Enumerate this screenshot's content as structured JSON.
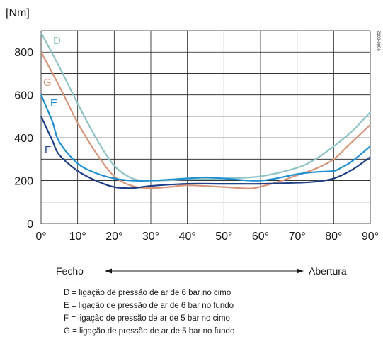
{
  "chart_data": {
    "type": "line",
    "ylabel": "[Nm]",
    "code": "2100-0006",
    "x_ticks": [
      "0°",
      "10°",
      "20°",
      "30°",
      "40°",
      "50°",
      "60°",
      "70°",
      "80°",
      "90°"
    ],
    "y_ticks": [
      "0",
      "200",
      "400",
      "600",
      "800"
    ],
    "xlim": [
      0,
      90
    ],
    "ylim": [
      0,
      900
    ],
    "grid": true,
    "direction_left": "Fecho",
    "direction_right": "Abertura",
    "series": [
      {
        "name": "D",
        "color": "#8fc3c6",
        "x": [
          0,
          5,
          10,
          15,
          20,
          25,
          30,
          40,
          50,
          60,
          70,
          75,
          80,
          85,
          90
        ],
        "y": [
          890,
          730,
          560,
          400,
          270,
          210,
          200,
          205,
          210,
          220,
          260,
          300,
          360,
          430,
          520
        ]
      },
      {
        "name": "G",
        "color": "#d7957a",
        "x": [
          0,
          5,
          10,
          15,
          20,
          25,
          30,
          35,
          40,
          50,
          57,
          60,
          65,
          70,
          75,
          80,
          85,
          90
        ],
        "y": [
          800,
          640,
          470,
          330,
          220,
          175,
          165,
          170,
          178,
          170,
          163,
          172,
          195,
          225,
          255,
          300,
          380,
          460
        ]
      },
      {
        "name": "E",
        "color": "#1e8fd0",
        "x": [
          0,
          3,
          5,
          10,
          15,
          20,
          25,
          30,
          40,
          45,
          50,
          60,
          70,
          75,
          80,
          82,
          85,
          90
        ],
        "y": [
          600,
          480,
          380,
          280,
          235,
          210,
          200,
          200,
          210,
          215,
          210,
          200,
          230,
          240,
          245,
          260,
          290,
          360
        ]
      },
      {
        "name": "F",
        "color": "#1f3f86",
        "x": [
          0,
          3,
          5,
          10,
          15,
          20,
          25,
          30,
          40,
          50,
          60,
          70,
          75,
          80,
          85,
          90
        ],
        "y": [
          500,
          390,
          320,
          245,
          200,
          170,
          165,
          175,
          185,
          185,
          185,
          190,
          195,
          210,
          250,
          310
        ]
      }
    ],
    "legend": [
      "D = ligação de pressão de ar de 6 bar no cimo",
      "E = ligação de pressão de ar de 6 bar no fundo",
      "F = ligação de pressão de ar de 5 bar no cimo",
      "G = ligação de pressão de ar de 5 bar no fundo"
    ]
  }
}
